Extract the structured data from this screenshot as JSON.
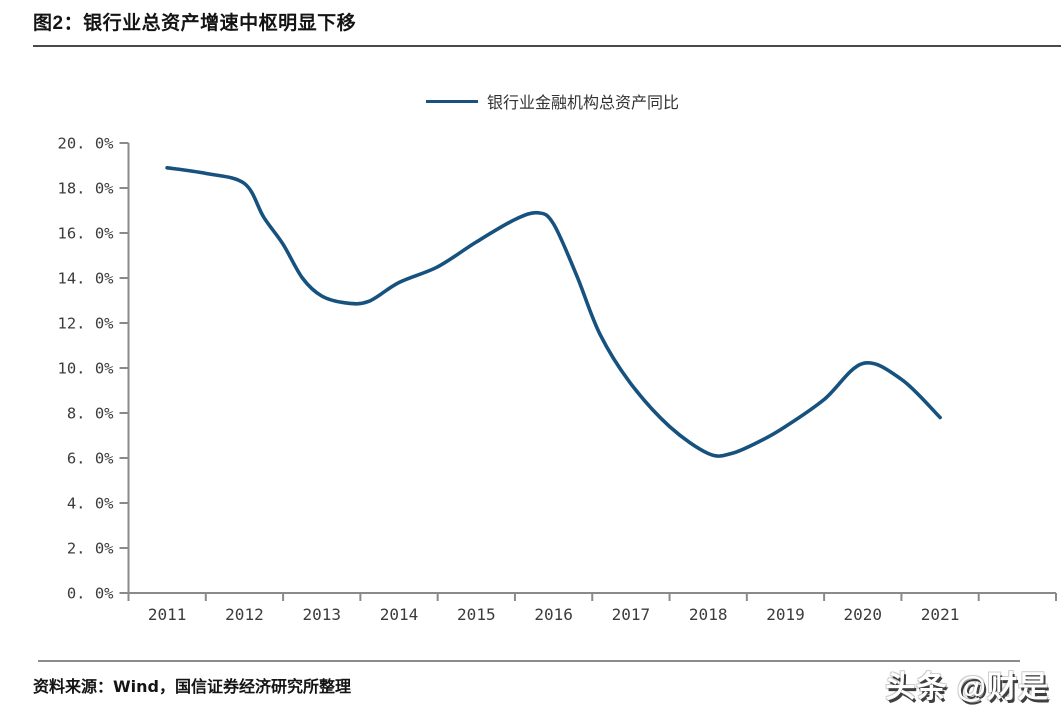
{
  "page": {
    "background": "#ffffff"
  },
  "header": {
    "title": "图2：银行业总资产增速中枢明显下移"
  },
  "legend": {
    "label": "银行业金融机构总资产同比"
  },
  "footer": {
    "source": "资料来源：Wind，国信证券经济研究所整理",
    "watermark": "头条 @财是"
  },
  "colors": {
    "line": "#17527f",
    "axis": "#8a8a8a",
    "tick_label": "#3c3c3c",
    "title_rule": "#4a4a4a",
    "footer_rule": "#8c8c8c"
  },
  "chart_data": {
    "type": "line",
    "title": "图2：银行业总资产增速中枢明显下移",
    "xlabel": "",
    "ylabel": "",
    "ylim": [
      0,
      20
    ],
    "y_tick_step_pct": 2,
    "grid": false,
    "legend_position": "top-center",
    "x_tick_labels": [
      "2011",
      "2012",
      "2013",
      "2014",
      "2015",
      "2016",
      "2017",
      "2018",
      "2019",
      "2020",
      "2021"
    ],
    "y_tick_labels": [
      "0. 0%",
      "2. 0%",
      "4. 0%",
      "6. 0%",
      "8. 0%",
      "10. 0%",
      "12. 0%",
      "14. 0%",
      "16. 0%",
      "18. 0%",
      "20. 0%"
    ],
    "series": [
      {
        "name": "银行业金融机构总资产同比",
        "color": "#17527f",
        "x": [
          2011,
          2011.5,
          2012,
          2012.25,
          2012.5,
          2012.75,
          2013,
          2013.3,
          2013.6,
          2014,
          2014.5,
          2015,
          2015.5,
          2015.8,
          2016,
          2016.3,
          2016.6,
          2017,
          2017.5,
          2018,
          2018.3,
          2018.7,
          2019,
          2019.5,
          2020,
          2020.5,
          2021
        ],
        "y_pct": [
          18.9,
          18.65,
          18.2,
          16.7,
          15.5,
          14.0,
          13.2,
          12.9,
          12.95,
          13.8,
          14.5,
          15.6,
          16.6,
          16.9,
          16.4,
          14.1,
          11.5,
          9.3,
          7.4,
          6.2,
          6.2,
          6.8,
          7.4,
          8.6,
          10.2,
          9.5,
          7.8
        ]
      }
    ]
  }
}
